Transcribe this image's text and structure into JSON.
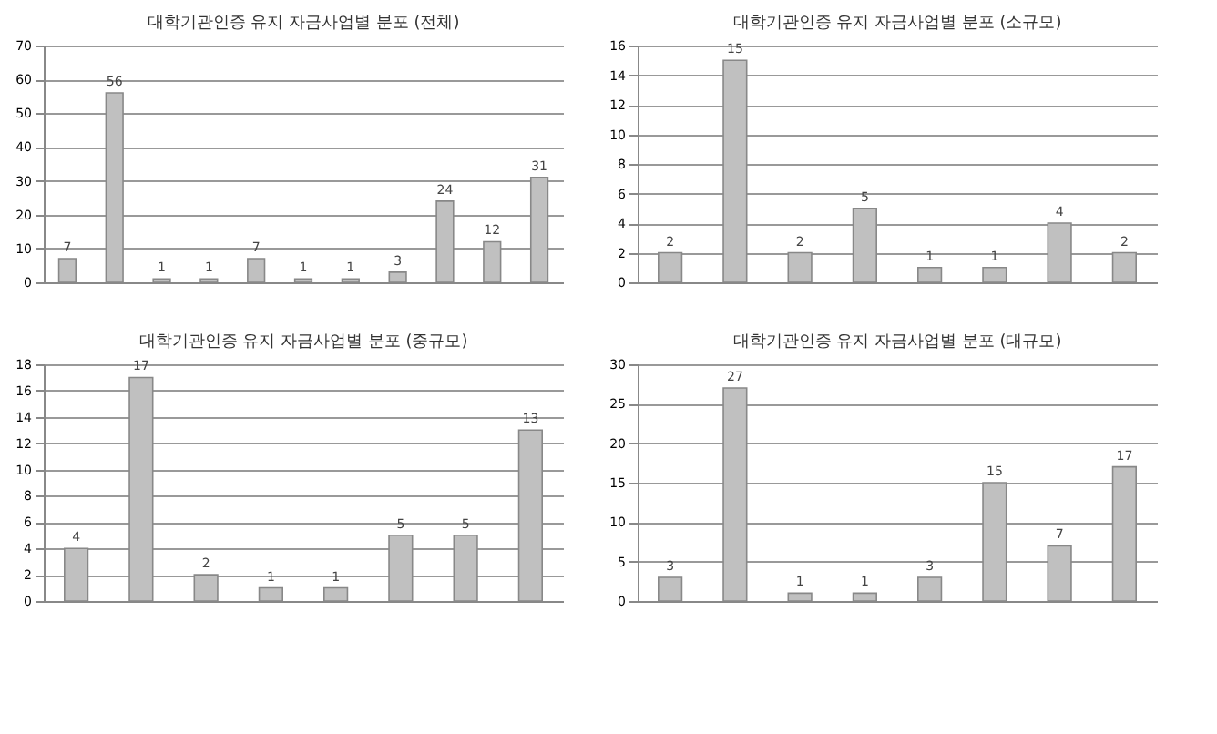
{
  "chart_data": [
    {
      "type": "bar",
      "title": "대학기관인증 유지 자금사업별 분포 (전체)",
      "categories": [
        null,
        null,
        null,
        null,
        null,
        null,
        null,
        null,
        null,
        null,
        null
      ],
      "values": [
        7,
        56,
        1,
        1,
        7,
        1,
        1,
        3,
        24,
        12,
        31
      ],
      "color": "#c0c0c0",
      "ylim": [
        0,
        70
      ],
      "yticks": [
        0,
        10,
        20,
        30,
        40,
        50,
        60,
        70
      ],
      "grid": "y",
      "data_labels": true
    },
    {
      "type": "bar",
      "title": "대학기관인증 유지 자금사업별 분포 (소규모)",
      "categories": [
        null,
        null,
        null,
        null,
        null,
        null,
        null,
        null
      ],
      "values": [
        2,
        15,
        2,
        5,
        1,
        1,
        4,
        2
      ],
      "color": "#c0c0c0",
      "ylim": [
        0,
        16
      ],
      "yticks": [
        0,
        2,
        4,
        6,
        8,
        10,
        12,
        14,
        16
      ],
      "grid": "y",
      "data_labels": true
    },
    {
      "type": "bar",
      "title": "대학기관인증 유지 자금사업별 분포 (중규모)",
      "categories": [
        null,
        null,
        null,
        null,
        null,
        null,
        null,
        null
      ],
      "values": [
        4,
        17,
        2,
        1,
        1,
        5,
        5,
        13
      ],
      "color": "#c0c0c0",
      "ylim": [
        0,
        18
      ],
      "yticks": [
        0,
        2,
        4,
        6,
        8,
        10,
        12,
        14,
        16,
        18
      ],
      "grid": "y",
      "data_labels": true
    },
    {
      "type": "bar",
      "title": "대학기관인증 유지 자금사업별 분포 (대규모)",
      "categories": [
        null,
        null,
        null,
        null,
        null,
        null,
        null,
        null
      ],
      "values": [
        3,
        27,
        1,
        1,
        3,
        15,
        7,
        17
      ],
      "color": "#c0c0c0",
      "ylim": [
        0,
        30
      ],
      "yticks": [
        0,
        5,
        10,
        15,
        20,
        25,
        30
      ],
      "grid": "y",
      "data_labels": true
    }
  ]
}
